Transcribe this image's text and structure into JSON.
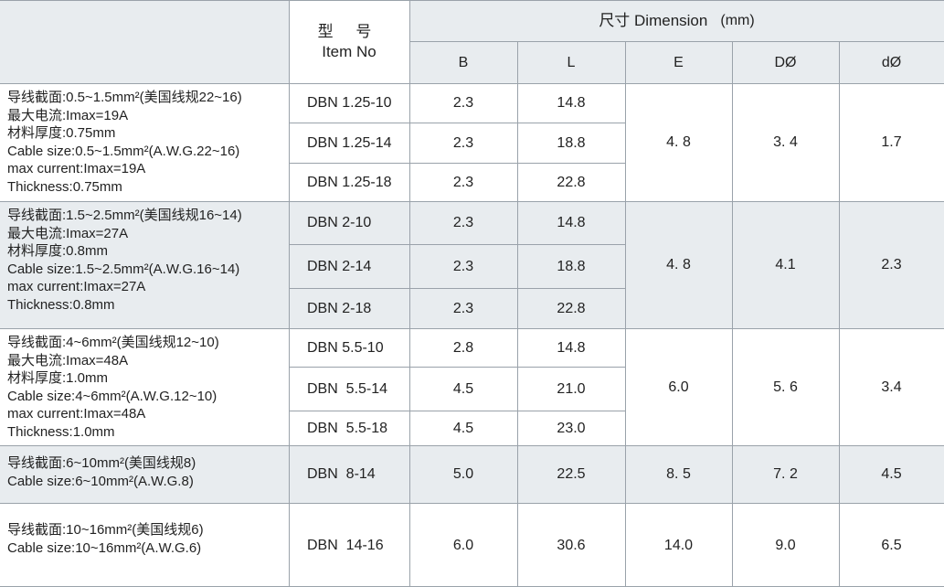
{
  "header": {
    "model_cn": "型 号",
    "model_en": "Item No",
    "dimension_label": "尺寸 Dimension",
    "dimension_unit": "(mm)",
    "columns": [
      "B",
      "L",
      "E",
      "DØ",
      "dØ"
    ]
  },
  "groups": [
    {
      "spec": [
        "导线截面:0.5~1.5mm²(美国线规22~16)",
        "最大电流:Imax=19A",
        "材料厚度:0.75mm",
        "Cable size:0.5~1.5mm²(A.W.G.22~16)",
        "max current:Imax=19A",
        "Thickness:0.75mm"
      ],
      "rows": [
        {
          "item": "DBN 1.25-10",
          "B": "2.3",
          "L": "14.8"
        },
        {
          "item": "DBN 1.25-14",
          "B": "2.3",
          "L": "18.8"
        },
        {
          "item": "DBN 1.25-18",
          "B": "2.3",
          "L": "22.8"
        }
      ],
      "E": "4. 8",
      "D": "3. 4",
      "d": "1.7"
    },
    {
      "spec": [
        "导线截面:1.5~2.5mm²(美国线规16~14)",
        "最大电流:Imax=27A",
        "材料厚度:0.8mm",
        "Cable size:1.5~2.5mm²(A.W.G.16~14)",
        "max current:Imax=27A",
        "Thickness:0.8mm"
      ],
      "rows": [
        {
          "item": "DBN 2-10",
          "B": "2.3",
          "L": "14.8"
        },
        {
          "item": "DBN 2-14",
          "B": "2.3",
          "L": "18.8"
        },
        {
          "item": "DBN 2-18",
          "B": "2.3",
          "L": "22.8"
        }
      ],
      "E": "4. 8",
      "D": "4.1",
      "d": "2.3"
    },
    {
      "spec": [
        "导线截面:4~6mm²(美国线规12~10)",
        "最大电流:Imax=48A",
        "材料厚度:1.0mm",
        "Cable size:4~6mm²(A.W.G.12~10)",
        "max current:Imax=48A",
        "Thickness:1.0mm"
      ],
      "rows": [
        {
          "item": "DBN 5.5-10",
          "B": "2.8",
          "L": "14.8"
        },
        {
          "item": "DBN  5.5-14",
          "B": "4.5",
          "L": "21.0"
        },
        {
          "item": "DBN  5.5-18",
          "B": "4.5",
          "L": "23.0"
        }
      ],
      "E": "6.0",
      "D": "5. 6",
      "d": "3.4"
    },
    {
      "spec": [
        "导线截面:6~10mm²(美国线规8)",
        "Cable size:6~10mm²(A.W.G.8)"
      ],
      "rows": [
        {
          "item": "DBN  8-14",
          "B": "5.0",
          "L": "22.5"
        }
      ],
      "E": "8. 5",
      "D": "7. 2",
      "d": "4.5"
    },
    {
      "spec": [
        "导线截面:10~16mm²(美国线规6)",
        "Cable size:10~16mm²(A.W.G.6)"
      ],
      "rows": [
        {
          "item": "DBN  14-16",
          "B": "6.0",
          "L": "30.6"
        }
      ],
      "E": "14.0",
      "D": "9.0",
      "d": "6.5"
    }
  ]
}
